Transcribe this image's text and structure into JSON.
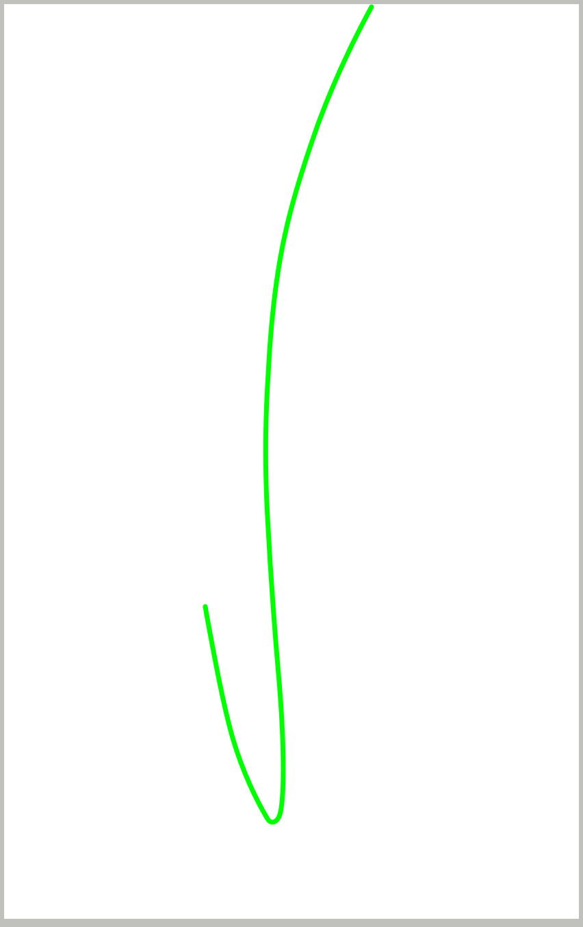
{
  "canvas": {
    "background_color": "#ffffff",
    "border_color": "#c0c0bc",
    "stroke": {
      "color": "#00ff00",
      "shape": "freehand-curve"
    }
  }
}
